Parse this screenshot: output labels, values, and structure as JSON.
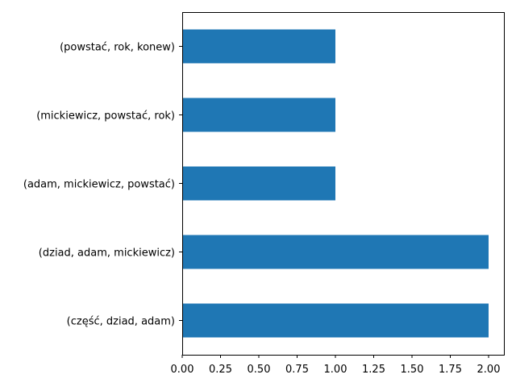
{
  "chart_data": {
    "type": "bar",
    "orientation": "horizontal",
    "categories": [
      "(powstać, rok, konew)",
      "(mickiewicz, powstać, rok)",
      "(adam, mickiewicz, powstać)",
      "(dziad, adam, mickiewicz)",
      "(część, dziad, adam)"
    ],
    "values": [
      1,
      1,
      1,
      2,
      2
    ],
    "title": "",
    "xlabel": "",
    "ylabel": "",
    "xlim": [
      0,
      2.1
    ],
    "xticks": [
      0,
      0.25,
      0.5,
      0.75,
      1,
      1.25,
      1.5,
      1.75,
      2
    ],
    "xtick_labels": [
      "0.00",
      "0.25",
      "0.50",
      "0.75",
      "1.00",
      "1.25",
      "1.50",
      "1.75",
      "2.00"
    ],
    "grid": false,
    "legend": "none",
    "bar_color": "#1f77b4"
  }
}
